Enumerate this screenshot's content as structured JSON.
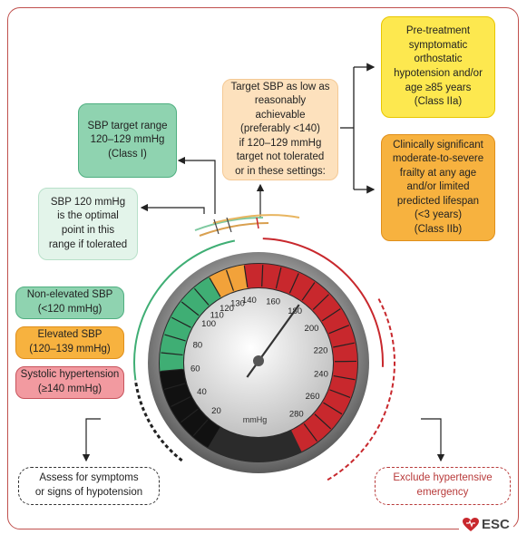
{
  "boxes": {
    "class_iia": "Pre-treatment\nsymptomatic\northostatic\nhypotension and/or\nage ≥85 years\n(Class IIa)",
    "class_iib": "Clinically significant\nmoderate-to-severe\nfrailty at any age\nand/or limited\npredicted lifespan\n(<3 years)\n(Class IIb)",
    "target_low": "Target SBP as low as\nreasonably achievable\n(preferably <140)\nif 120–129 mmHg\ntarget not tolerated\nor in these settings:",
    "target_range": "SBP target range\n120–129 mmHg\n(Class I)",
    "optimal": "SBP 120 mmHg\nis the optimal\npoint in this\nrange if tolerated",
    "assess": "Assess for symptoms\nor signs of hypotension",
    "exclude": "Exclude hypertensive\nemergency"
  },
  "legend": {
    "non_elevated": "Non-elevated SBP\n(<120 mmHg)",
    "elevated": "Elevated SBP\n(120–139 mmHg)",
    "hypertension": "Systolic hypertension\n(≥140 mmHg)"
  },
  "gauge": {
    "unit": "mmHg",
    "ticks": [
      "20",
      "40",
      "60",
      "80",
      "100",
      "110",
      "120",
      "130",
      "140",
      "160",
      "180",
      "200",
      "220",
      "240",
      "260",
      "280"
    ],
    "needle_value": 180
  },
  "colors": {
    "green": "#3fae74",
    "orange": "#f2a23a",
    "red": "#c8282d",
    "black": "#111111"
  },
  "logo": "ESC"
}
